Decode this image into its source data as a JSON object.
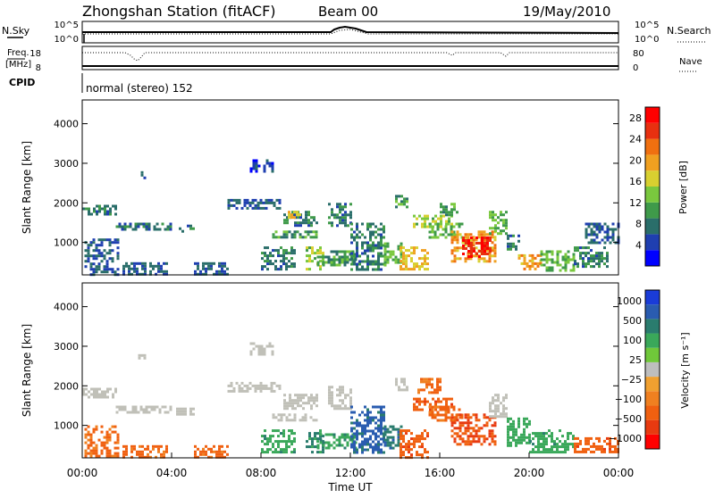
{
  "header": {
    "station": "Zhongshan Station (fitACF)",
    "beam": "Beam 00",
    "date": "19/May/2010"
  },
  "top_panels": {
    "nsky_label": "N.Sky",
    "nsky_ticks": [
      "10^5",
      "10^0"
    ],
    "nsearch_label": "N.Search",
    "nsearch_ticks": [
      "10^5",
      "10^0"
    ],
    "freq_label_1": "Freq.",
    "freq_label_2": "[MHz]",
    "freq_ticks": [
      "18",
      "8"
    ],
    "nave_label": "Nave",
    "nave_ticks": [
      "80",
      "0"
    ],
    "cpid_label": "CPID",
    "cpid_value": "normal (stereo) 152"
  },
  "colors": {
    "power_scale": [
      "#0000ff",
      "#1f3fb0",
      "#2a6e6a",
      "#3f9a4a",
      "#7ac83e",
      "#d8d030",
      "#f0a020",
      "#f07010",
      "#e83010",
      "#ff0000"
    ],
    "velocity_scale": [
      "#1a3cd8",
      "#2a5cb0",
      "#2a7c6e",
      "#3aa85a",
      "#70c83a",
      "#bebebe",
      "#f0a030",
      "#f08020",
      "#f06010",
      "#e83a10",
      "#ff0000"
    ],
    "ground_scatter": "#c0c0b8"
  },
  "chart_data": [
    {
      "type": "heatmap",
      "name": "power",
      "xlabel": "",
      "ylabel": "Slant Range [km]",
      "xlim": [
        0,
        24
      ],
      "ylim": [
        180,
        4600
      ],
      "yticks": [
        "1000",
        "2000",
        "3000",
        "4000"
      ],
      "colorbar_label": "Power [dB]",
      "colorbar_ticks": [
        "4",
        "8",
        "12",
        "16",
        "20",
        "24",
        "28"
      ],
      "colorbar_range": [
        0,
        30
      ],
      "regions": [
        {
          "t0": 0.0,
          "t1": 1.5,
          "r0": 1700,
          "r1": 1950,
          "v": 8
        },
        {
          "t0": 0.1,
          "t1": 1.6,
          "r0": 200,
          "r1": 1100,
          "v": 6
        },
        {
          "t0": 1.5,
          "t1": 4.0,
          "r0": 1350,
          "r1": 1500,
          "v": 8
        },
        {
          "t0": 1.8,
          "t1": 3.8,
          "r0": 200,
          "r1": 500,
          "v": 6
        },
        {
          "t0": 2.5,
          "t1": 2.8,
          "r0": 2600,
          "r1": 2800,
          "v": 6
        },
        {
          "t0": 4.2,
          "t1": 5.0,
          "r0": 1300,
          "r1": 1450,
          "v": 8
        },
        {
          "t0": 5.0,
          "t1": 6.5,
          "r0": 200,
          "r1": 500,
          "v": 6
        },
        {
          "t0": 6.5,
          "t1": 8.8,
          "r0": 1850,
          "r1": 2100,
          "v": 6
        },
        {
          "t0": 7.5,
          "t1": 8.5,
          "r0": 2800,
          "r1": 3100,
          "v": 4
        },
        {
          "t0": 8.0,
          "t1": 9.5,
          "r0": 300,
          "r1": 900,
          "v": 8
        },
        {
          "t0": 8.5,
          "t1": 10.5,
          "r0": 1100,
          "r1": 1300,
          "v": 10
        },
        {
          "t0": 9.0,
          "t1": 10.5,
          "r0": 1400,
          "r1": 1800,
          "v": 8
        },
        {
          "t0": 9.2,
          "t1": 9.8,
          "r0": 1650,
          "r1": 1800,
          "v": 18
        },
        {
          "t0": 10.0,
          "t1": 10.8,
          "r0": 350,
          "r1": 900,
          "v": 14
        },
        {
          "t0": 10.5,
          "t1": 12.2,
          "r0": 400,
          "r1": 800,
          "v": 10
        },
        {
          "t0": 11.0,
          "t1": 12.0,
          "r0": 1400,
          "r1": 2000,
          "v": 8
        },
        {
          "t0": 12.0,
          "t1": 13.5,
          "r0": 300,
          "r1": 1500,
          "v": 8
        },
        {
          "t0": 13.5,
          "t1": 14.3,
          "r0": 400,
          "r1": 1000,
          "v": 12
        },
        {
          "t0": 14.0,
          "t1": 14.5,
          "r0": 1900,
          "r1": 2200,
          "v": 10
        },
        {
          "t0": 14.2,
          "t1": 15.5,
          "r0": 300,
          "r1": 900,
          "v": 18
        },
        {
          "t0": 14.8,
          "t1": 16.5,
          "r0": 1400,
          "r1": 1700,
          "v": 14
        },
        {
          "t0": 15.5,
          "t1": 17.0,
          "r0": 1100,
          "r1": 1500,
          "v": 12
        },
        {
          "t0": 16.0,
          "t1": 16.8,
          "r0": 1700,
          "r1": 2000,
          "v": 10
        },
        {
          "t0": 16.5,
          "t1": 18.5,
          "r0": 500,
          "r1": 1300,
          "v": 20
        },
        {
          "t0": 17.0,
          "t1": 18.3,
          "r0": 650,
          "r1": 1150,
          "v": 27
        },
        {
          "t0": 18.2,
          "t1": 19.0,
          "r0": 1200,
          "r1": 1800,
          "v": 12
        },
        {
          "t0": 19.0,
          "t1": 19.5,
          "r0": 800,
          "r1": 1200,
          "v": 8
        },
        {
          "t0": 19.5,
          "t1": 20.5,
          "r0": 300,
          "r1": 700,
          "v": 20
        },
        {
          "t0": 20.5,
          "t1": 22.0,
          "r0": 300,
          "r1": 800,
          "v": 12
        },
        {
          "t0": 22.0,
          "t1": 23.5,
          "r0": 400,
          "r1": 900,
          "v": 8
        },
        {
          "t0": 22.5,
          "t1": 24.0,
          "r0": 1000,
          "r1": 1500,
          "v": 6
        }
      ]
    },
    {
      "type": "heatmap",
      "name": "velocity",
      "xlabel": "Time UT",
      "ylabel": "Slant Range [km]",
      "xlim": [
        0,
        24
      ],
      "ylim": [
        180,
        4600
      ],
      "xticks": [
        "00:00",
        "04:00",
        "08:00",
        "12:00",
        "16:00",
        "20:00",
        "00:00"
      ],
      "yticks": [
        "1000",
        "2000",
        "3000",
        "4000"
      ],
      "colorbar_label": "Velocity [m s⁻¹]",
      "colorbar_ticks": [
        "1000",
        "500",
        "100",
        "25",
        "−25",
        "−100",
        "−500",
        "−1000"
      ],
      "regions": [
        {
          "t0": 0.0,
          "t1": 1.5,
          "r0": 1700,
          "r1": 1950,
          "v": "gs"
        },
        {
          "t0": 0.1,
          "t1": 1.6,
          "r0": 200,
          "r1": 1000,
          "v": -300
        },
        {
          "t0": 1.5,
          "t1": 4.0,
          "r0": 1350,
          "r1": 1500,
          "v": "gs"
        },
        {
          "t0": 1.8,
          "t1": 3.8,
          "r0": 200,
          "r1": 500,
          "v": -300
        },
        {
          "t0": 2.5,
          "t1": 2.8,
          "r0": 2600,
          "r1": 2800,
          "v": "gs"
        },
        {
          "t0": 4.2,
          "t1": 5.0,
          "r0": 1300,
          "r1": 1450,
          "v": "gs"
        },
        {
          "t0": 5.0,
          "t1": 6.5,
          "r0": 200,
          "r1": 500,
          "v": -300
        },
        {
          "t0": 6.5,
          "t1": 8.8,
          "r0": 1850,
          "r1": 2100,
          "v": "gs"
        },
        {
          "t0": 7.5,
          "t1": 8.5,
          "r0": 2800,
          "r1": 3100,
          "v": "gs"
        },
        {
          "t0": 8.0,
          "t1": 9.5,
          "r0": 300,
          "r1": 900,
          "v": 200
        },
        {
          "t0": 8.5,
          "t1": 10.5,
          "r0": 1100,
          "r1": 1300,
          "v": "gs"
        },
        {
          "t0": 9.0,
          "t1": 10.5,
          "r0": 1400,
          "r1": 1800,
          "v": "gs"
        },
        {
          "t0": 10.0,
          "t1": 10.8,
          "r0": 350,
          "r1": 900,
          "v": 300
        },
        {
          "t0": 10.5,
          "t1": 12.2,
          "r0": 400,
          "r1": 800,
          "v": 200
        },
        {
          "t0": 11.0,
          "t1": 12.0,
          "r0": 1400,
          "r1": 2000,
          "v": "gs"
        },
        {
          "t0": 12.0,
          "t1": 13.5,
          "r0": 300,
          "r1": 1500,
          "v": 600
        },
        {
          "t0": 13.5,
          "t1": 14.3,
          "r0": 400,
          "r1": 1000,
          "v": 400
        },
        {
          "t0": 14.0,
          "t1": 14.5,
          "r0": 1900,
          "r1": 2200,
          "v": "gs"
        },
        {
          "t0": 14.2,
          "t1": 15.5,
          "r0": 200,
          "r1": 900,
          "v": -400
        },
        {
          "t0": 14.8,
          "t1": 16.5,
          "r0": 1400,
          "r1": 1700,
          "v": -400
        },
        {
          "t0": 15.0,
          "t1": 16.0,
          "r0": 1800,
          "r1": 2200,
          "v": -300
        },
        {
          "t0": 15.5,
          "t1": 17.0,
          "r0": 1100,
          "r1": 1500,
          "v": -300
        },
        {
          "t0": 16.5,
          "t1": 18.5,
          "r0": 500,
          "r1": 1300,
          "v": -500
        },
        {
          "t0": 18.2,
          "t1": 19.0,
          "r0": 1200,
          "r1": 1800,
          "v": "gs"
        },
        {
          "t0": 19.0,
          "t1": 20.0,
          "r0": 500,
          "r1": 1200,
          "v": 150
        },
        {
          "t0": 20.0,
          "t1": 22.0,
          "r0": 300,
          "r1": 900,
          "v": 200
        },
        {
          "t0": 22.0,
          "t1": 24.0,
          "r0": 300,
          "r1": 700,
          "v": -400
        }
      ]
    }
  ]
}
